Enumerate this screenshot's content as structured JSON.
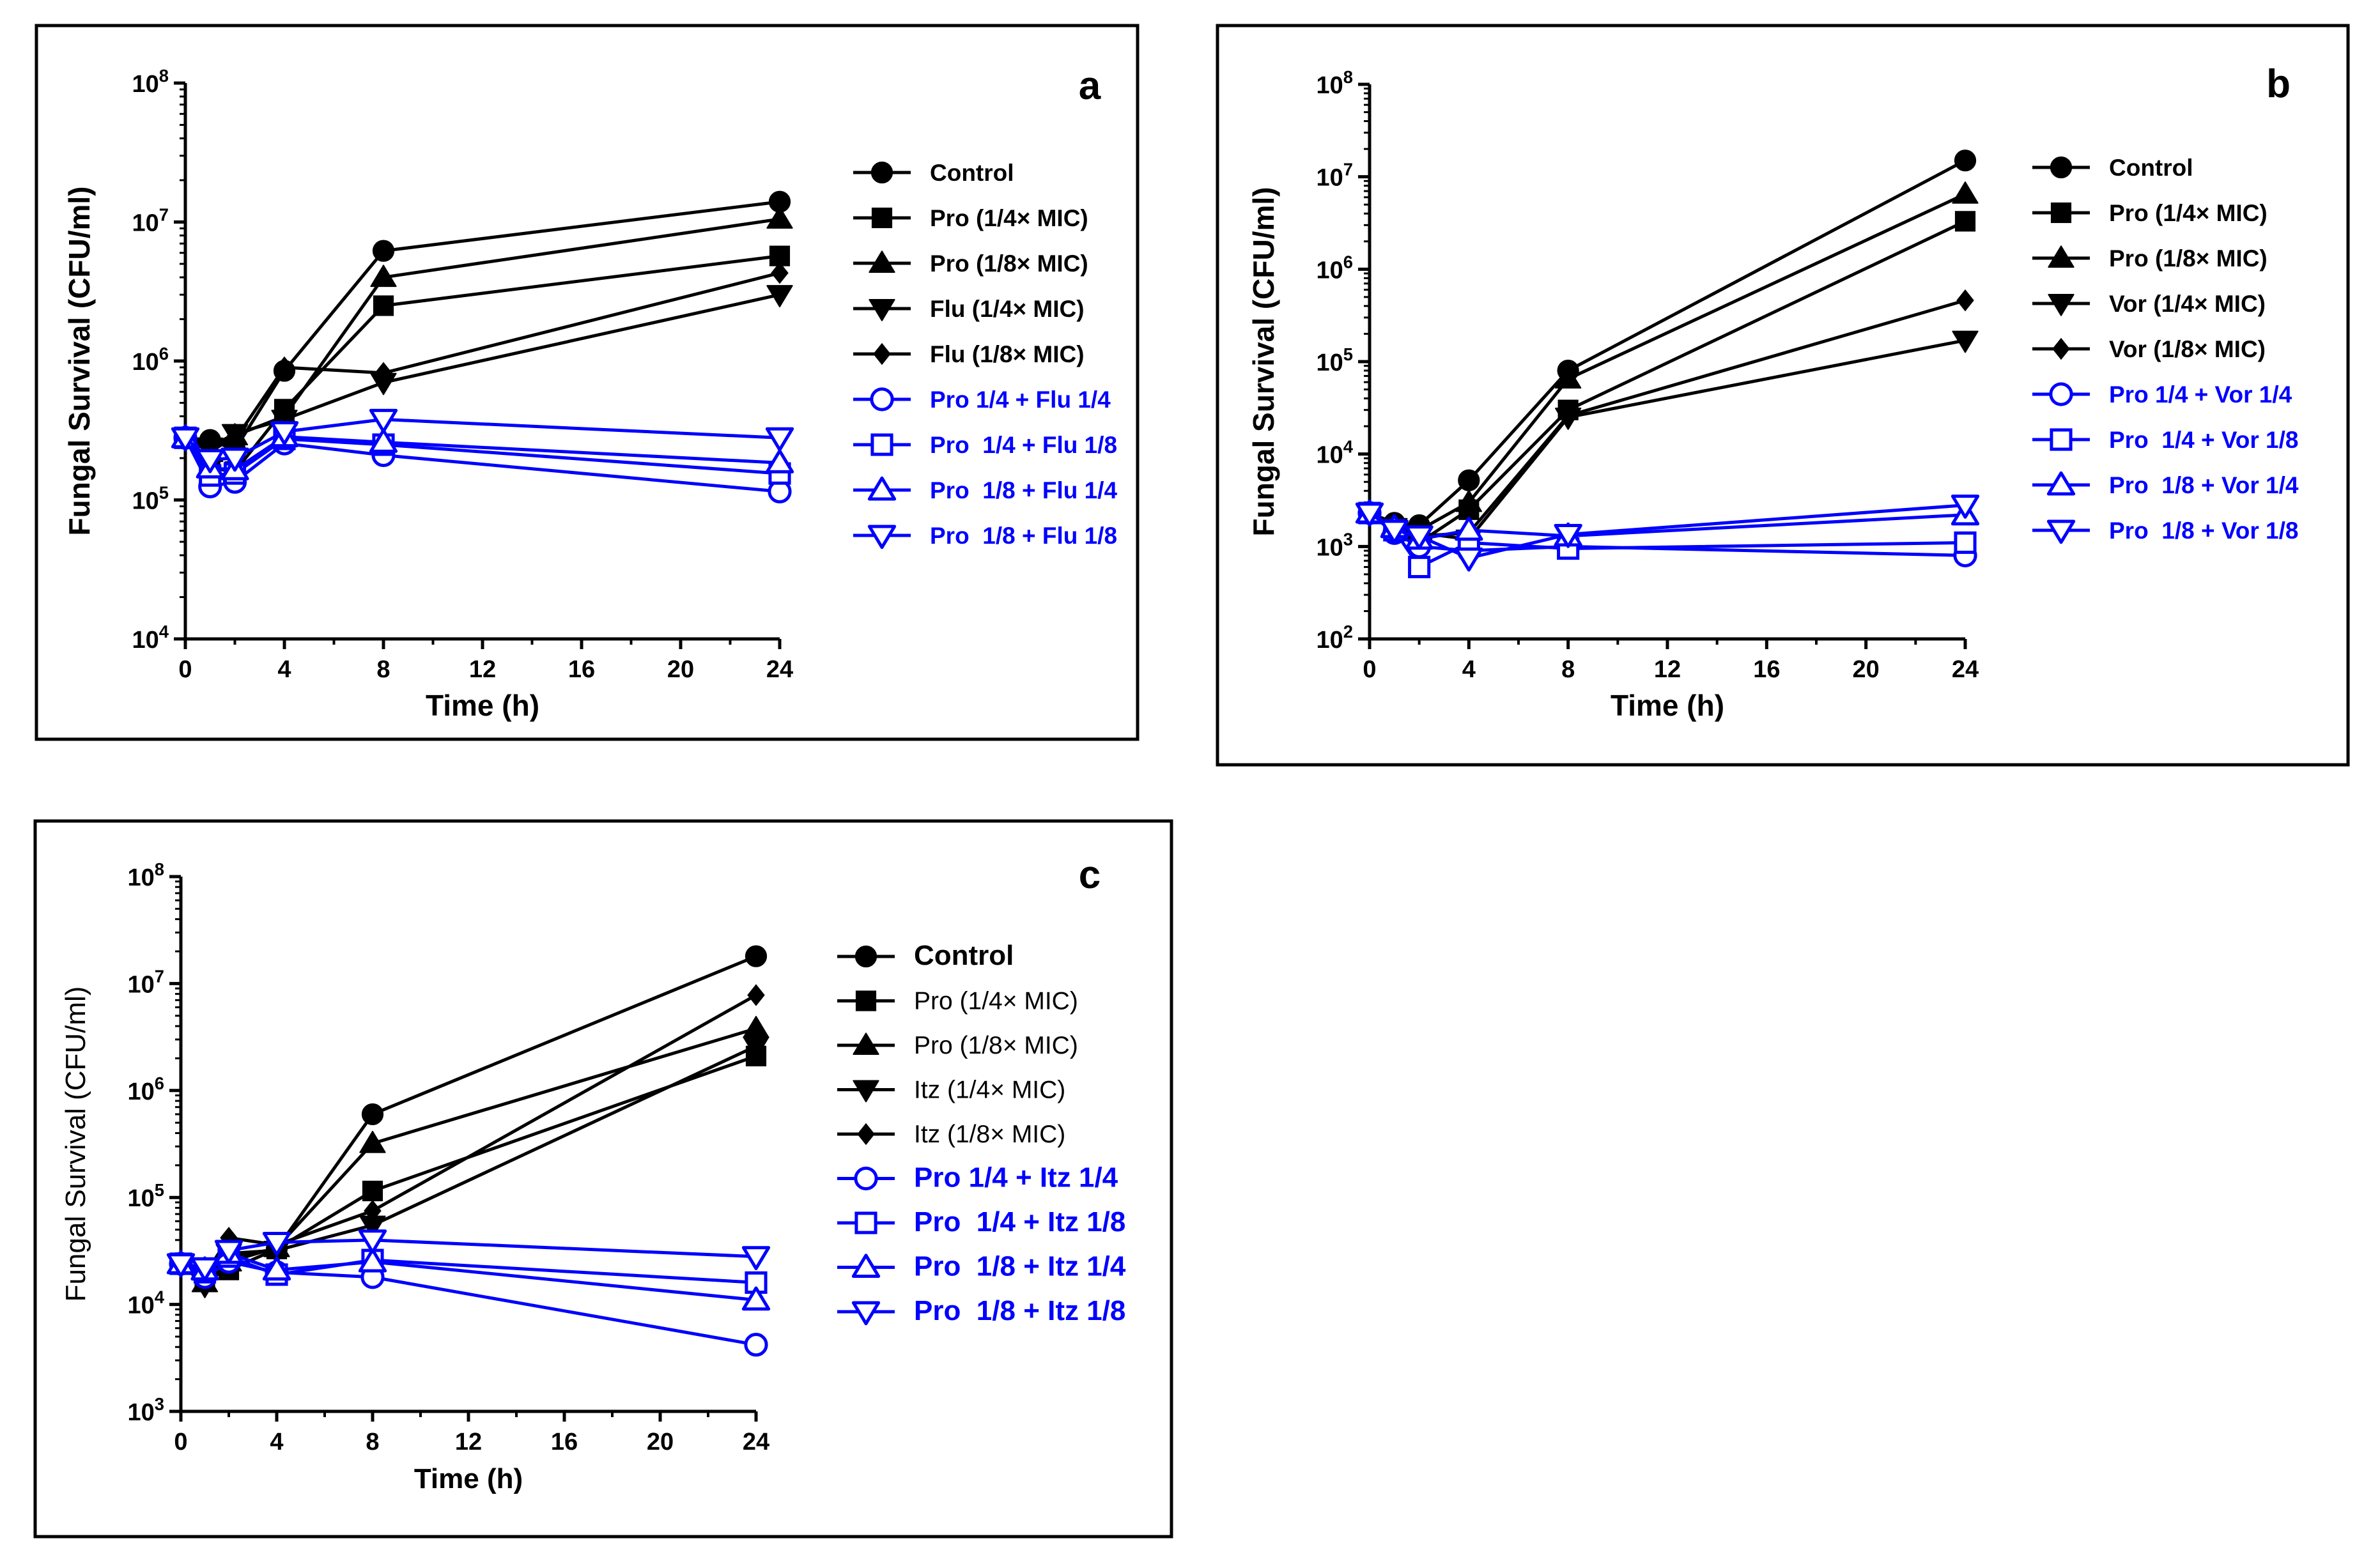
{
  "chart_data": [
    {
      "type": "line",
      "panel_label": "a",
      "xlabel": "Time (h)",
      "ylabel": "Fungal Survival (CFU/ml)",
      "yscale": "log",
      "x": [
        0,
        1,
        2,
        4,
        8,
        24
      ],
      "xlim": [
        0,
        24
      ],
      "x_ticks": [
        0,
        4,
        8,
        12,
        16,
        20,
        24
      ],
      "ylim_exp": [
        4,
        8
      ],
      "series": [
        {
          "name": "Control",
          "color": "#000000",
          "marker": "circle",
          "filled": true,
          "values": [
            280000,
            270000,
            230000,
            850000,
            6200000,
            14000000
          ]
        },
        {
          "name": "Pro (1/4× MIC)",
          "color": "#000000",
          "marker": "square",
          "filled": true,
          "values": [
            280000,
            170000,
            160000,
            450000,
            2500000,
            5700000
          ]
        },
        {
          "name": "Pro (1/8× MIC)",
          "color": "#000000",
          "marker": "triangle-up",
          "filled": true,
          "values": [
            280000,
            220000,
            290000,
            400000,
            4000000,
            10500000
          ]
        },
        {
          "name": "Flu (1/4× MIC)",
          "color": "#000000",
          "marker": "triangle-down",
          "filled": true,
          "values": [
            280000,
            240000,
            300000,
            380000,
            700000,
            3000000
          ]
        },
        {
          "name": "Flu (1/8× MIC)",
          "color": "#000000",
          "marker": "diamond",
          "filled": true,
          "values": [
            280000,
            260000,
            270000,
            900000,
            820000,
            4300000
          ]
        },
        {
          "name": "Pro 1/4 + Flu 1/4",
          "color": "#0000ff",
          "marker": "circle",
          "filled": false,
          "values": [
            280000,
            125000,
            135000,
            255000,
            210000,
            115000
          ]
        },
        {
          "name": "Pro  1/4 + Flu 1/8",
          "color": "#0000ff",
          "marker": "square",
          "filled": false,
          "values": [
            280000,
            150000,
            155000,
            275000,
            250000,
            155000
          ]
        },
        {
          "name": "Pro  1/8 + Flu 1/4",
          "color": "#0000ff",
          "marker": "triangle-up",
          "filled": false,
          "values": [
            280000,
            170000,
            165000,
            285000,
            260000,
            185000
          ]
        },
        {
          "name": "Pro  1/8 + Flu 1/8",
          "color": "#0000ff",
          "marker": "triangle-down",
          "filled": false,
          "values": [
            280000,
            195000,
            200000,
            310000,
            380000,
            280000
          ]
        }
      ]
    },
    {
      "type": "line",
      "panel_label": "b",
      "xlabel": "Time (h)",
      "ylabel": "Fungal Survival (CFU/ml)",
      "yscale": "log",
      "x": [
        0,
        1,
        2,
        4,
        8,
        24
      ],
      "xlim": [
        0,
        24
      ],
      "x_ticks": [
        0,
        4,
        8,
        12,
        16,
        20,
        24
      ],
      "ylim_exp": [
        2,
        8
      ],
      "series": [
        {
          "name": "Control",
          "color": "#000000",
          "marker": "circle",
          "filled": true,
          "values": [
            2300,
            1800,
            1700,
            5200,
            80000,
            15000000
          ]
        },
        {
          "name": "Pro (1/4× MIC)",
          "color": "#000000",
          "marker": "square",
          "filled": true,
          "values": [
            2300,
            1500,
            1100,
            2500,
            30000,
            3300000
          ]
        },
        {
          "name": "Pro (1/8× MIC)",
          "color": "#000000",
          "marker": "triangle-up",
          "filled": true,
          "values": [
            2300,
            1700,
            1500,
            3000,
            65000,
            6500000
          ]
        },
        {
          "name": "Vor (1/4× MIC)",
          "color": "#000000",
          "marker": "triangle-down",
          "filled": true,
          "values": [
            2300,
            1600,
            1400,
            1200,
            25000,
            170000
          ]
        },
        {
          "name": "Vor (1/8× MIC)",
          "color": "#000000",
          "marker": "diamond",
          "filled": true,
          "values": [
            2300,
            1400,
            1300,
            1400,
            26000,
            460000
          ]
        },
        {
          "name": "Pro 1/4 + Vor 1/4",
          "color": "#0000ff",
          "marker": "circle",
          "filled": false,
          "values": [
            2300,
            1400,
            1000,
            900,
            1000,
            800
          ]
        },
        {
          "name": "Pro  1/4 + Vor 1/8",
          "color": "#0000ff",
          "marker": "square",
          "filled": false,
          "values": [
            2300,
            1500,
            600,
            1100,
            950,
            1100
          ]
        },
        {
          "name": "Pro  1/8 + Vor 1/4",
          "color": "#0000ff",
          "marker": "triangle-up",
          "filled": false,
          "values": [
            2300,
            1600,
            1200,
            1500,
            1300,
            2200
          ]
        },
        {
          "name": "Pro  1/8 + Vor 1/8",
          "color": "#0000ff",
          "marker": "triangle-down",
          "filled": false,
          "values": [
            2300,
            1500,
            1300,
            750,
            1350,
            2800
          ]
        }
      ]
    },
    {
      "type": "line",
      "panel_label": "c",
      "xlabel": "Time (h)",
      "ylabel": "Fungal Survival (CFU/ml)",
      "yscale": "log",
      "x": [
        0,
        1,
        2,
        4,
        8,
        24
      ],
      "xlim": [
        0,
        24
      ],
      "x_ticks": [
        0,
        4,
        8,
        12,
        16,
        20,
        24
      ],
      "ylim_exp": [
        3,
        8
      ],
      "series": [
        {
          "name": "Control",
          "color": "#000000",
          "marker": "circle",
          "filled": true,
          "values": [
            24000,
            18000,
            28000,
            33000,
            600000,
            18000000
          ]
        },
        {
          "name": "Pro (1/4× MIC)",
          "color": "#000000",
          "marker": "square",
          "filled": true,
          "values": [
            24000,
            17000,
            21000,
            33000,
            115000,
            2100000
          ]
        },
        {
          "name": "Pro (1/8× MIC)",
          "color": "#000000",
          "marker": "triangle-up",
          "filled": true,
          "values": [
            24000,
            16000,
            25000,
            34000,
            320000,
            3800000
          ]
        },
        {
          "name": "Itz (1/4× MIC)",
          "color": "#000000",
          "marker": "triangle-down",
          "filled": true,
          "values": [
            24000,
            15000,
            30000,
            32000,
            55000,
            2600000
          ]
        },
        {
          "name": "Itz (1/8× MIC)",
          "color": "#000000",
          "marker": "diamond",
          "filled": true,
          "values": [
            24000,
            19000,
            42000,
            36000,
            75000,
            7800000
          ]
        },
        {
          "name": "Pro 1/4 + Itz 1/4",
          "color": "#0000ff",
          "marker": "circle",
          "filled": false,
          "values": [
            24000,
            18000,
            25000,
            20000,
            18000,
            4200
          ]
        },
        {
          "name": "Pro  1/4 + Itz 1/8",
          "color": "#0000ff",
          "marker": "square",
          "filled": false,
          "values": [
            24000,
            20000,
            28000,
            19000,
            26000,
            16000
          ]
        },
        {
          "name": "Pro  1/8 + Itz 1/4",
          "color": "#0000ff",
          "marker": "triangle-up",
          "filled": false,
          "values": [
            24000,
            21000,
            30000,
            21000,
            25000,
            11000
          ]
        },
        {
          "name": "Pro  1/8 + Itz 1/8",
          "color": "#0000ff",
          "marker": "triangle-down",
          "filled": false,
          "values": [
            24000,
            22000,
            32000,
            38000,
            40000,
            28000
          ]
        }
      ]
    }
  ]
}
